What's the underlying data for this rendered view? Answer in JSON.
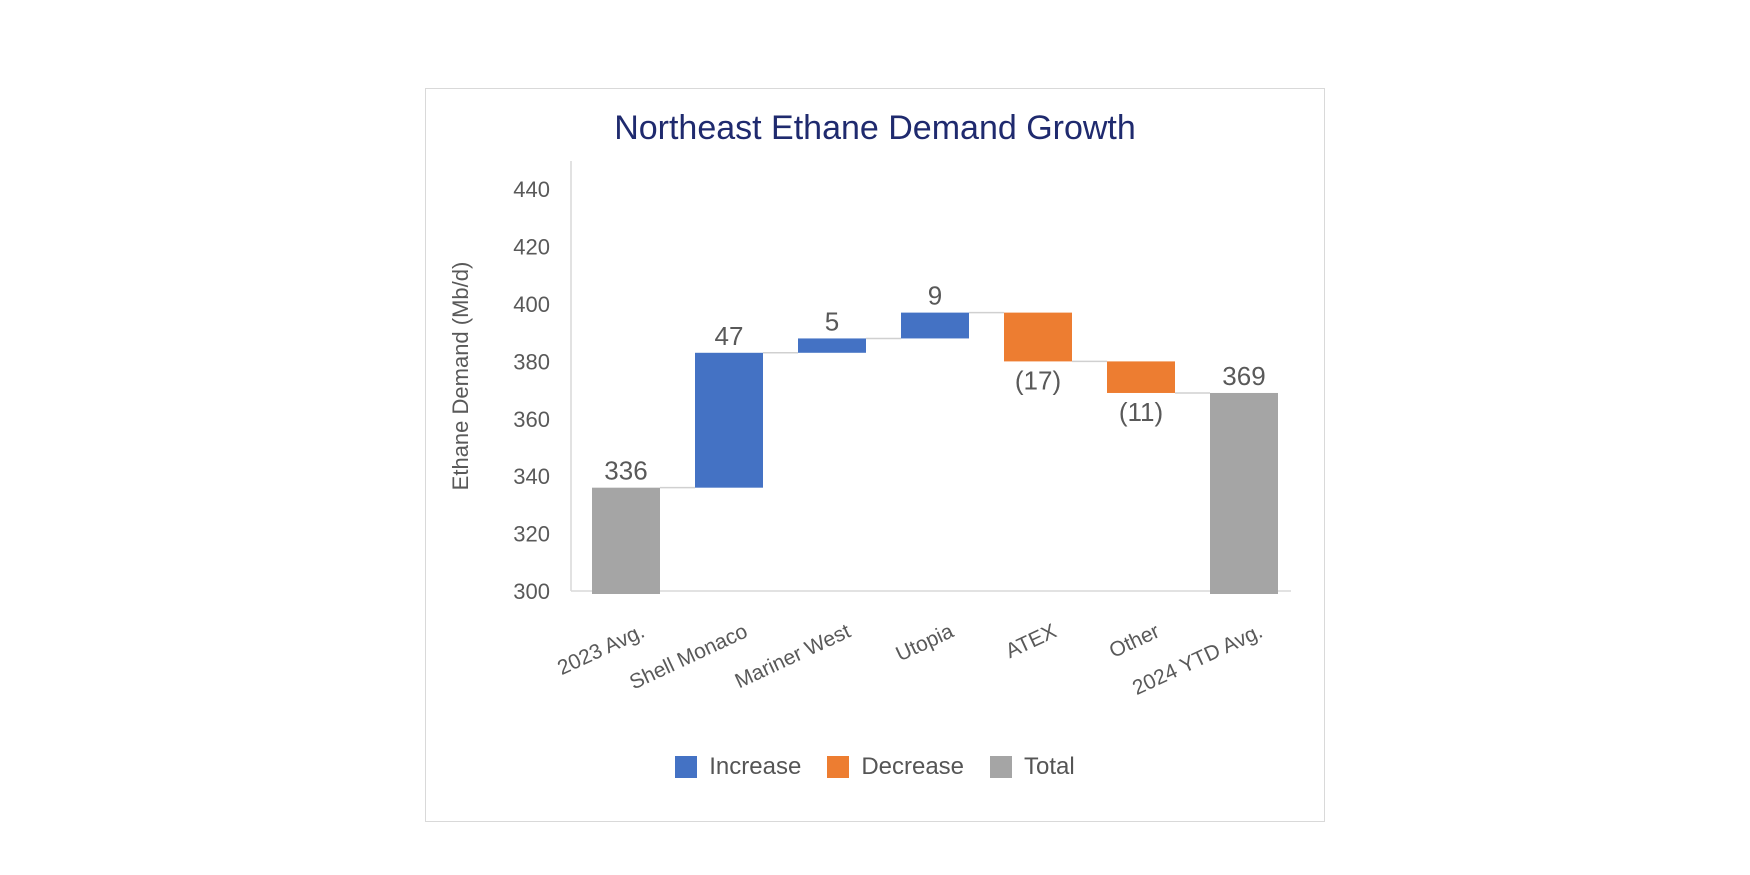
{
  "chart_data": {
    "type": "bar",
    "subtype": "waterfall",
    "title": "Northeast Ethane Demand Growth",
    "xlabel": "",
    "ylabel": "Ethane Demand (Mb/d)",
    "ylim": [
      300,
      450
    ],
    "yticks": [
      300,
      320,
      340,
      360,
      380,
      400,
      420,
      440
    ],
    "grid": false,
    "legend_position": "bottom",
    "categories": [
      "2023 Avg.",
      "Shell Monaco",
      "Mariner West",
      "Utopia",
      "ATEX",
      "Other",
      "2024 YTD Avg."
    ],
    "values": [
      336,
      47,
      5,
      9,
      -17,
      -11,
      369
    ],
    "kinds": [
      "total",
      "increase",
      "increase",
      "increase",
      "decrease",
      "decrease",
      "total"
    ],
    "data_labels": [
      "336",
      "47",
      "5",
      "9",
      "(17)",
      "(11)",
      "369"
    ],
    "legend": [
      {
        "kind": "increase",
        "label": "Increase",
        "color": "#4472c4"
      },
      {
        "kind": "decrease",
        "label": "Decrease",
        "color": "#ed7d31"
      },
      {
        "kind": "total",
        "label": "Total",
        "color": "#a5a5a5"
      }
    ]
  }
}
